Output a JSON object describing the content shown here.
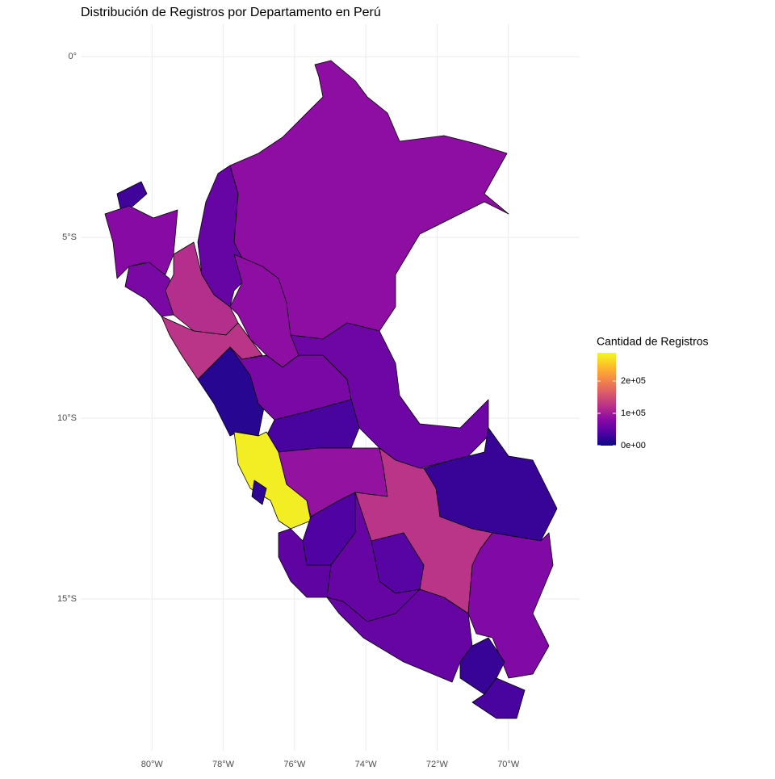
{
  "chart_data": {
    "type": "choropleth",
    "title": "Distribución de Registros por Departamento en Perú",
    "xlim": [
      -82,
      -68
    ],
    "ylim": [
      -19.2,
      0.9
    ],
    "xticks": [
      {
        "value": -80,
        "label": "80°W"
      },
      {
        "value": -78,
        "label": "78°W"
      },
      {
        "value": -76,
        "label": "76°W"
      },
      {
        "value": -74,
        "label": "74°W"
      },
      {
        "value": -72,
        "label": "72°W"
      },
      {
        "value": -70,
        "label": "70°W"
      }
    ],
    "yticks": [
      {
        "value": 0,
        "label": "0°"
      },
      {
        "value": -5,
        "label": "5°S"
      },
      {
        "value": -10,
        "label": "10°S"
      },
      {
        "value": -15,
        "label": "15°S"
      }
    ],
    "grid": true,
    "values": [
      30000,
      80000,
      70000,
      120000,
      55000,
      85000,
      85000,
      125000,
      15000,
      70000,
      60000,
      35000,
      280000,
      20000,
      90000,
      25000,
      125000,
      40000,
      50000,
      55000,
      45000,
      75000,
      55000,
      25000,
      35000
    ],
    "legend": {
      "title": "Cantidad de Registros",
      "position": "right",
      "colorlim": [
        0,
        287500
      ],
      "ticks": [
        {
          "value": 0,
          "label": "0e+00"
        },
        {
          "value": 100000,
          "label": "1e+05"
        },
        {
          "value": 200000,
          "label": "2e+05"
        }
      ]
    },
    "colorscale": [
      "#0d0887",
      "#5302a3",
      "#8b0aa5",
      "#b83289",
      "#db5c68",
      "#f48849",
      "#febd2a",
      "#f0f921"
    ]
  }
}
